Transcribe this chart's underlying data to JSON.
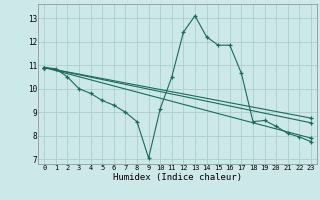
{
  "xlabel": "Humidex (Indice chaleur)",
  "bg_color": "#cce8e8",
  "grid_color": "#aad0d0",
  "line_color": "#1a6b5a",
  "xlim": [
    -0.5,
    23.5
  ],
  "ylim": [
    6.8,
    13.6
  ],
  "xticks": [
    0,
    1,
    2,
    3,
    4,
    5,
    6,
    7,
    8,
    9,
    10,
    11,
    12,
    13,
    14,
    15,
    16,
    17,
    18,
    19,
    20,
    21,
    22,
    23
  ],
  "yticks": [
    7,
    8,
    9,
    10,
    11,
    12,
    13
  ],
  "series1": [
    [
      0,
      10.9
    ],
    [
      1,
      10.85
    ],
    [
      2,
      10.5
    ],
    [
      3,
      10.0
    ],
    [
      4,
      9.8
    ],
    [
      5,
      9.5
    ],
    [
      6,
      9.3
    ],
    [
      7,
      9.0
    ],
    [
      8,
      8.6
    ],
    [
      9,
      7.05
    ],
    [
      10,
      9.15
    ],
    [
      11,
      10.5
    ],
    [
      12,
      12.4
    ],
    [
      13,
      13.1
    ],
    [
      14,
      12.2
    ],
    [
      15,
      11.85
    ],
    [
      16,
      11.85
    ],
    [
      17,
      10.65
    ],
    [
      18,
      8.6
    ],
    [
      19,
      8.65
    ],
    [
      20,
      8.4
    ],
    [
      21,
      8.1
    ],
    [
      22,
      7.95
    ],
    [
      23,
      7.75
    ]
  ],
  "series2": [
    [
      0,
      10.9
    ],
    [
      23,
      7.9
    ]
  ],
  "series3": [
    [
      0,
      10.9
    ],
    [
      23,
      8.55
    ]
  ],
  "series4": [
    [
      0,
      10.9
    ],
    [
      23,
      8.75
    ]
  ]
}
